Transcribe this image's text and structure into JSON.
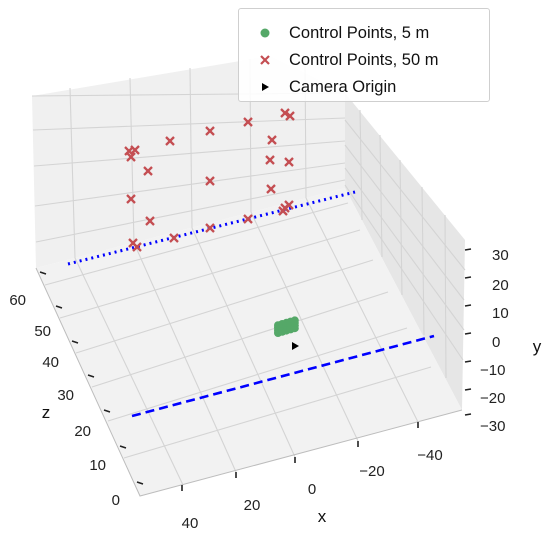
{
  "chart_data": {
    "type": "scatter",
    "projection": "3d",
    "legend_position": "top-right",
    "grid": true,
    "xlabel": "x",
    "ylabel": "y",
    "zlabel": "z",
    "x_ticks": [
      "40",
      "20",
      "0",
      "−20",
      "−40"
    ],
    "y_ticks": [
      "30",
      "20",
      "10",
      "0",
      "−10",
      "−20",
      "−30"
    ],
    "z_ticks": [
      "60",
      "50",
      "40",
      "30",
      "20",
      "10",
      "0"
    ],
    "legend": [
      "Control Points, 5 m",
      "Control Points, 50 m",
      "Camera Origin"
    ],
    "colors": {
      "control_5m": "#55a868",
      "control_50m": "#c44e52",
      "camera_origin": "#000000",
      "line_near": "#0000ff",
      "line_far": "#0000ff"
    },
    "series": [
      {
        "name": "Control Points, 5 m",
        "marker": "circle",
        "note": "dense cluster near camera origin, z approx 5"
      },
      {
        "name": "Control Points, 50 m",
        "marker": "x",
        "note": "grid of points at z approx 50"
      },
      {
        "name": "Camera Origin",
        "marker": "triangle-right"
      }
    ],
    "lines": [
      {
        "style": "dashed",
        "color": "#0000ff",
        "note": "line at z approx 5"
      },
      {
        "style": "dotted",
        "color": "#0000ff",
        "note": "line at z approx 50"
      }
    ]
  }
}
